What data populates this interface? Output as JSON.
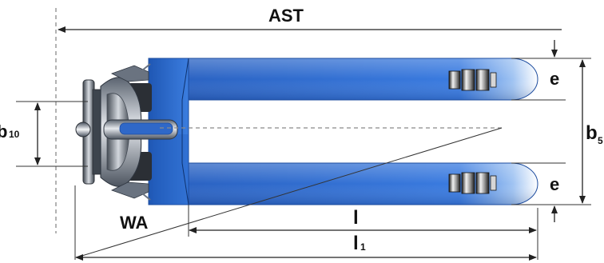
{
  "diagram": {
    "labels": {
      "ast": "AST",
      "wa": "WA",
      "l": "l",
      "l1_main": "l",
      "l1_sub": "1",
      "b5_main": "b",
      "b5_sub": "5",
      "b10_main": "b",
      "b10_sub": "10",
      "e_top": "e",
      "e_bottom": "e"
    },
    "colors": {
      "fork": "#2e6fd0",
      "fork_highlight": "#a9c9f3",
      "fork_tip": "#ffffff",
      "chassis": "#7d8896",
      "dimension_line": "#222222",
      "reference_dash": "#8a8a8a"
    }
  }
}
